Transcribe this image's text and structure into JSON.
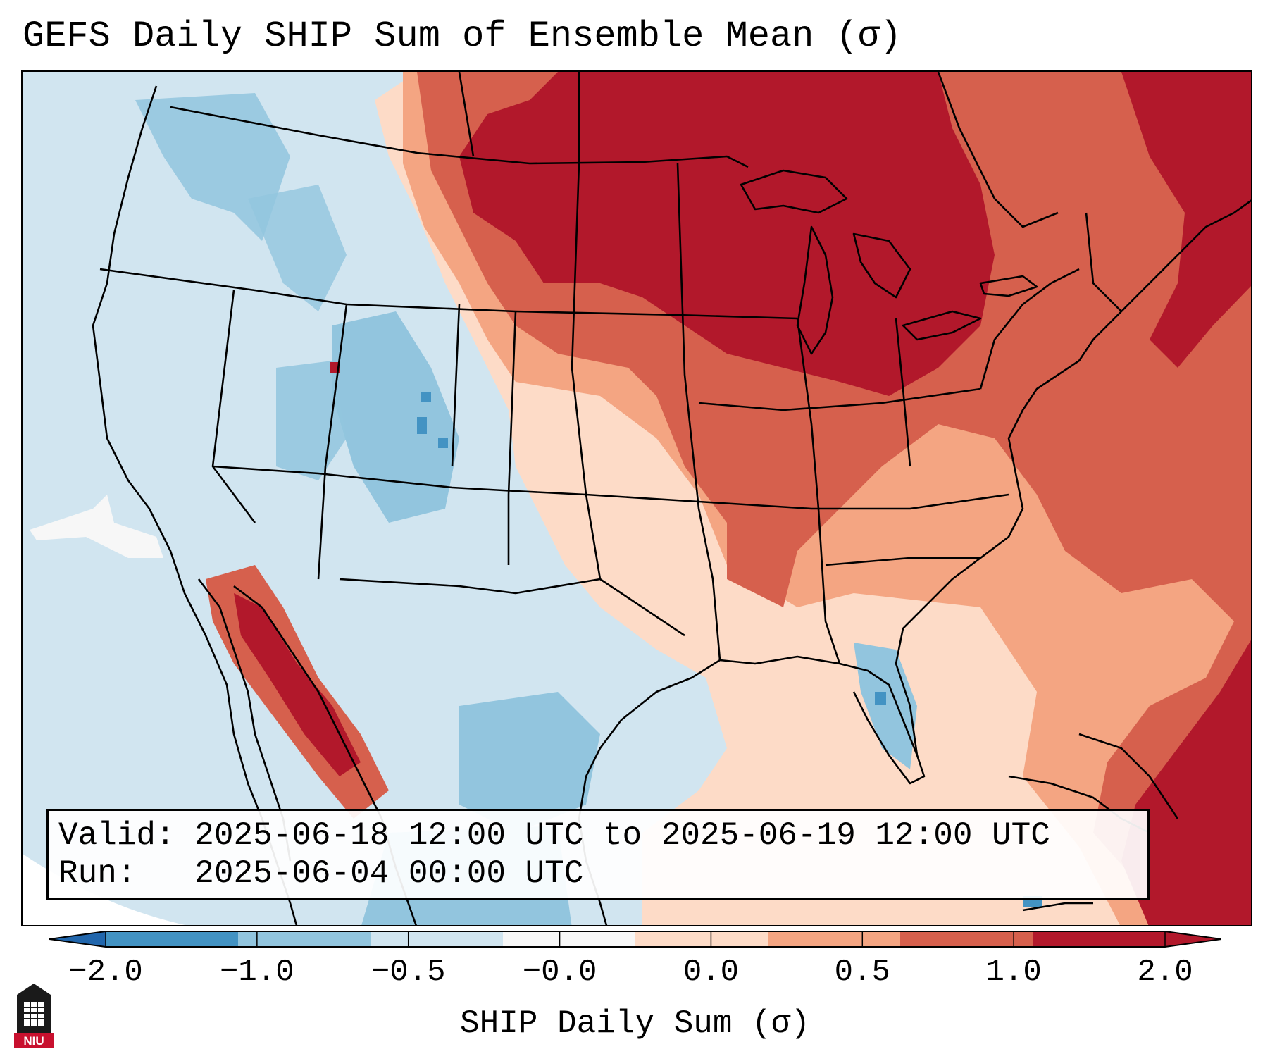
{
  "title": "GEFS Daily SHIP Sum of Ensemble Mean (σ)",
  "info": {
    "valid_label": "Valid:",
    "valid_value": "2025-06-18 12:00 UTC to 2025-06-19 12:00 UTC",
    "run_label": "Run:",
    "run_value": "2025-06-04 00:00 UTC"
  },
  "colorbar": {
    "label": "SHIP Daily Sum (σ)",
    "ticks": [
      "−2.0",
      "−1.0",
      "−0.5",
      "−0.0",
      "0.0",
      "0.5",
      "1.0",
      "2.0"
    ],
    "colors": [
      "#4393c3",
      "#92c5de",
      "#d1e5f0",
      "#f7f7f7",
      "#fddbc7",
      "#f4a582",
      "#d6604d",
      "#b2182b"
    ],
    "extend_low_color": "#2166ac",
    "extend_high_color": "#b2182b"
  },
  "map": {
    "region": "Contiguous United States, southern Canada, northern Mexico",
    "background_color": "#d1e5f0"
  },
  "logo": {
    "text": "NIU",
    "color": "#c8102e"
  }
}
